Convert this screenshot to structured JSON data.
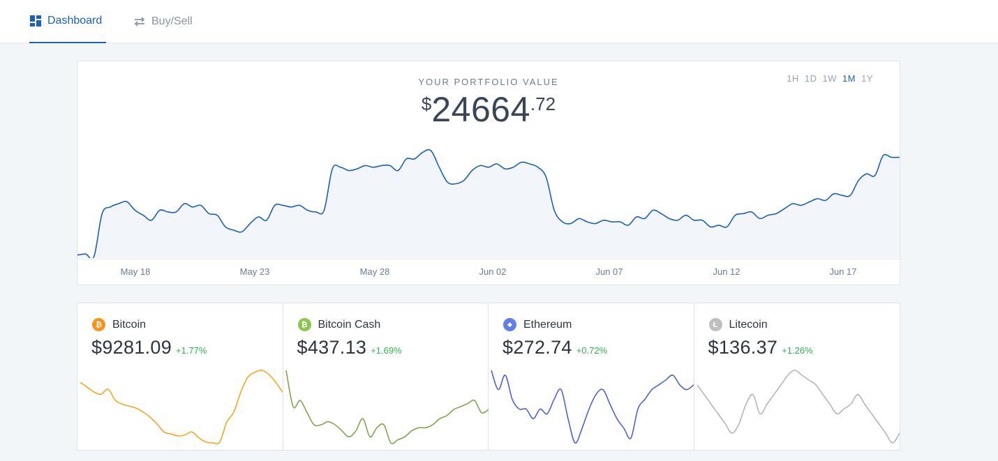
{
  "nav": {
    "tabs": [
      {
        "label": "Dashboard",
        "icon": "dashboard-grid-icon",
        "active": true
      },
      {
        "label": "Buy/Sell",
        "icon": "swap-arrows-icon",
        "active": false
      }
    ]
  },
  "portfolio": {
    "title": "YOUR PORTFOLIO VALUE",
    "currency_symbol": "$",
    "value_int": "24664",
    "value_dec": ".72",
    "ranges": [
      "1H",
      "1D",
      "1W",
      "1M",
      "1Y"
    ],
    "active_range": "1M",
    "accent": "#1b5fb8"
  },
  "chart_data": {
    "type": "area",
    "x_tick_labels": [
      "May 18",
      "May 23",
      "May 28",
      "Jun 02",
      "Jun 07",
      "Jun 12",
      "Jun 17"
    ],
    "series": [
      {
        "color": "#1b5fb8",
        "values": [
          21350,
          21380,
          21300,
          22600,
          22800,
          22900,
          22960,
          22700,
          22550,
          22400,
          22700,
          22650,
          22650,
          22900,
          22800,
          22850,
          22600,
          22550,
          22200,
          22100,
          22050,
          22300,
          22500,
          22400,
          22850,
          22850,
          22800,
          22850,
          22700,
          22650,
          22700,
          23950,
          24000,
          23900,
          23950,
          24050,
          24000,
          24050,
          24050,
          23900,
          24250,
          24250,
          24450,
          24500,
          24000,
          23550,
          23500,
          23600,
          23900,
          24050,
          24000,
          24100,
          23950,
          24000,
          24150,
          24100,
          24000,
          23700,
          22700,
          22350,
          22300,
          22450,
          22350,
          22300,
          22400,
          22350,
          22350,
          22250,
          22500,
          22450,
          22700,
          22600,
          22450,
          22400,
          22550,
          22400,
          22400,
          22200,
          22250,
          22200,
          22550,
          22600,
          22650,
          22450,
          22550,
          22600,
          22750,
          22900,
          22850,
          22950,
          23050,
          23000,
          23200,
          23150,
          23150,
          23600,
          23800,
          23750,
          24350,
          24300,
          24300
        ]
      }
    ]
  },
  "coins": [
    {
      "name": "Bitcoin",
      "price": "$9281.09",
      "change": "+1.77%",
      "icon": "bitcoin-icon",
      "glyph": "₿",
      "color": "#f7931a",
      "line_color": "#f5a623",
      "spark": [
        9300,
        9250,
        9200,
        9180,
        9230,
        9120,
        9080,
        9060,
        9040,
        9000,
        8950,
        8880,
        8800,
        8780,
        8760,
        8770,
        8800,
        8740,
        8700,
        8690,
        8700,
        8900,
        9000,
        9200,
        9350,
        9400,
        9420,
        9380,
        9300,
        9200
      ]
    },
    {
      "name": "Bitcoin Cash",
      "price": "$437.13",
      "change": "+1.69%",
      "icon": "bitcoin-cash-icon",
      "glyph": "₿",
      "color": "#8dc351",
      "line_color": "#7fa64a",
      "spark": [
        450,
        438,
        440,
        436,
        432,
        432,
        433,
        432,
        430,
        428,
        430,
        434,
        428,
        431,
        432,
        426,
        427,
        428,
        430,
        431,
        431,
        432,
        434,
        435,
        437,
        438,
        439,
        440,
        436,
        437
      ]
    },
    {
      "name": "Ethereum",
      "price": "$272.74",
      "change": "+0.72%",
      "icon": "ethereum-icon",
      "glyph": "◆",
      "color": "#627eea",
      "line_color": "#4a63d6",
      "spark": [
        280,
        276,
        279,
        274,
        272,
        272,
        270,
        272,
        271,
        274,
        276,
        270,
        265,
        268,
        272,
        275,
        276,
        273,
        270,
        268,
        266,
        272,
        274,
        276,
        277,
        278,
        279,
        277,
        276,
        277
      ]
    },
    {
      "name": "Litecoin",
      "price": "$136.37",
      "change": "+1.26%",
      "icon": "litecoin-icon",
      "glyph": "Ł",
      "color": "#bebebe",
      "line_color": "#b5b5b5",
      "spark": [
        138,
        137,
        136,
        135,
        134,
        133,
        134,
        136,
        137,
        135,
        136,
        137,
        138,
        139,
        139.5,
        139,
        138.5,
        138,
        137,
        136,
        135,
        135.5,
        136,
        137,
        136,
        135,
        134,
        133,
        132,
        133
      ]
    }
  ]
}
